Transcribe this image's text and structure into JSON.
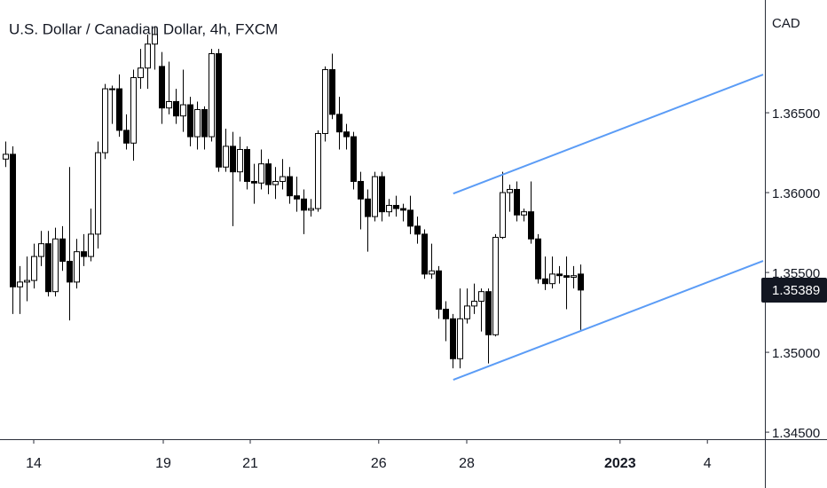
{
  "chart_data": {
    "type": "candlestick",
    "title": "U.S. Dollar / Canadian Dollar, 4h, FXCM",
    "currency": "CAD",
    "ylim": [
      1.34456,
      1.37206
    ],
    "yticks": [
      {
        "value": 1.345,
        "label": "1.34500"
      },
      {
        "value": 1.35,
        "label": "1.35000"
      },
      {
        "value": 1.355,
        "label": "1.35500"
      },
      {
        "value": 1.36,
        "label": "1.36000"
      },
      {
        "value": 1.365,
        "label": "1.36500"
      }
    ],
    "xlim": [
      -0.75,
      106.75
    ],
    "xticks": [
      {
        "value": 4,
        "label": "14"
      },
      {
        "value": 22.25,
        "label": "19"
      },
      {
        "value": 34.5,
        "label": "21"
      },
      {
        "value": 52.6,
        "label": "26"
      },
      {
        "value": 65,
        "label": "28"
      },
      {
        "value": 86.6,
        "label": "2023"
      },
      {
        "value": 98.9,
        "label": "4"
      }
    ],
    "up_color": "#ffffff",
    "down_color": "#000000",
    "wick_color": "#000000",
    "series": [
      {
        "open": [
          1.3621,
          1.3624,
          1.3541,
          1.3544,
          1.3545,
          1.356,
          1.3568,
          1.3538,
          1.3571,
          1.3557,
          1.3544,
          1.3563,
          1.356,
          1.3574,
          1.3625,
          1.3665,
          1.3665,
          1.3639,
          1.3631,
          1.3672,
          1.3678,
          1.3693,
          1.3679,
          1.3653,
          1.3657,
          1.3648,
          1.3655,
          1.3635,
          1.3652,
          1.3635,
          1.3687,
          1.3616,
          1.3629,
          1.3613,
          1.3627,
          1.3607,
          1.3606,
          1.3618,
          1.3605,
          1.3607,
          1.361,
          1.3598,
          1.3596,
          1.3589,
          1.359,
          1.3637,
          1.3677,
          1.3649,
          1.3638,
          1.3635,
          1.3607,
          1.3596,
          1.3585,
          1.361,
          1.3588,
          1.3592,
          1.359,
          1.3589,
          1.3579,
          1.3574,
          1.3549,
          1.3551,
          1.3527,
          1.3521,
          1.3496,
          1.3521,
          1.3529,
          1.3532,
          1.3538,
          1.3511,
          1.3572,
          1.36,
          1.3602,
          1.3586,
          1.3588,
          1.3571,
          1.3546,
          1.3543,
          1.3549,
          1.3548,
          1.3547,
          1.3549
        ],
        "high": [
          1.3632,
          1.3629,
          1.3554,
          1.356,
          1.3568,
          1.3576,
          1.3576,
          1.3578,
          1.3579,
          1.3616,
          1.3571,
          1.3574,
          1.359,
          1.3632,
          1.3668,
          1.3667,
          1.3674,
          1.3649,
          1.3677,
          1.369,
          1.3699,
          1.3704,
          1.3688,
          1.3682,
          1.3665,
          1.3677,
          1.366,
          1.3657,
          1.3654,
          1.369,
          1.369,
          1.364,
          1.3638,
          1.3635,
          1.3629,
          1.3618,
          1.3627,
          1.3621,
          1.3616,
          1.3621,
          1.3616,
          1.361,
          1.3602,
          1.3596,
          1.3639,
          1.3679,
          1.3687,
          1.366,
          1.3643,
          1.3638,
          1.3613,
          1.3602,
          1.3613,
          1.3613,
          1.3596,
          1.3598,
          1.3593,
          1.3598,
          1.3585,
          1.3577,
          1.3568,
          1.3554,
          1.3532,
          1.3524,
          1.354,
          1.354,
          1.3543,
          1.354,
          1.354,
          1.3574,
          1.3613,
          1.3605,
          1.3607,
          1.359,
          1.3607,
          1.3574,
          1.356,
          1.356,
          1.3554,
          1.356,
          1.3554,
          1.3555
        ],
        "low": [
          1.3616,
          1.3524,
          1.3524,
          1.3532,
          1.354,
          1.3554,
          1.3535,
          1.3535,
          1.3551,
          1.352,
          1.354,
          1.3554,
          1.3557,
          1.3565,
          1.3621,
          1.3643,
          1.3635,
          1.3627,
          1.362,
          1.3665,
          1.3665,
          1.3677,
          1.3643,
          1.3649,
          1.3643,
          1.3638,
          1.3629,
          1.3627,
          1.3627,
          1.3632,
          1.3613,
          1.3613,
          1.3579,
          1.3607,
          1.3602,
          1.3593,
          1.3602,
          1.3599,
          1.3596,
          1.3602,
          1.3593,
          1.3588,
          1.3574,
          1.3585,
          1.3588,
          1.3632,
          1.3646,
          1.3627,
          1.3627,
          1.3602,
          1.3577,
          1.3563,
          1.3582,
          1.3582,
          1.3585,
          1.3585,
          1.3582,
          1.3574,
          1.3568,
          1.3546,
          1.3546,
          1.3521,
          1.3507,
          1.349,
          1.349,
          1.3518,
          1.3524,
          1.3513,
          1.3493,
          1.351,
          1.3571,
          1.3588,
          1.3582,
          1.3582,
          1.3568,
          1.3543,
          1.3539,
          1.354,
          1.3543,
          1.3527,
          1.354,
          1.3514
        ],
        "close": [
          1.3624,
          1.3541,
          1.3544,
          1.3545,
          1.356,
          1.3568,
          1.3538,
          1.3571,
          1.3557,
          1.3544,
          1.3563,
          1.356,
          1.3574,
          1.3625,
          1.3665,
          1.3665,
          1.3639,
          1.3631,
          1.3672,
          1.3678,
          1.3693,
          1.3699,
          1.3653,
          1.3657,
          1.3648,
          1.3655,
          1.3635,
          1.3652,
          1.3635,
          1.3687,
          1.3616,
          1.3629,
          1.3613,
          1.3627,
          1.3607,
          1.3606,
          1.3618,
          1.3605,
          1.3607,
          1.361,
          1.3598,
          1.3596,
          1.3589,
          1.359,
          1.3637,
          1.3677,
          1.3649,
          1.3638,
          1.3635,
          1.3607,
          1.3596,
          1.3585,
          1.361,
          1.3588,
          1.3592,
          1.359,
          1.3589,
          1.3579,
          1.3574,
          1.3549,
          1.3551,
          1.3527,
          1.3521,
          1.3496,
          1.3521,
          1.3529,
          1.3532,
          1.3538,
          1.3511,
          1.3572,
          1.36,
          1.3602,
          1.3586,
          1.3588,
          1.3571,
          1.3546,
          1.3543,
          1.3549,
          1.3548,
          1.3547,
          1.3548,
          1.3539
        ]
      }
    ],
    "trend_lines": [
      {
        "color": "#5b9cf6",
        "x": [
          63.1,
          106.75
        ],
        "y": [
          1.35994,
          1.36739
        ]
      },
      {
        "color": "#5b9cf6",
        "x": [
          63.1,
          106.75
        ],
        "y": [
          1.34828,
          1.35572
        ]
      }
    ],
    "last_price": 1.35389,
    "last_price_color": "#131722"
  }
}
